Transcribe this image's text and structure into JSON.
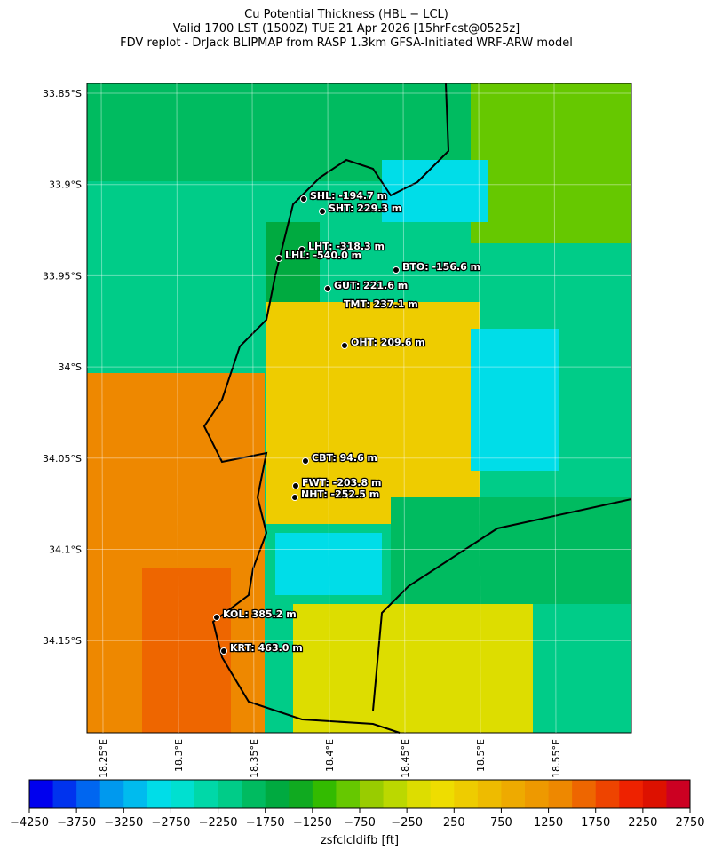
{
  "header": {
    "title_lines": [
      "Cu Potential Thickness (HBL − LCL)",
      "Valid 1700 LST (1500Z) TUE 21 Apr 2026 [15hrFcst@0525z]",
      "FDV replot - DrJack BLIPMAP from RASP 1.3km GFSA-Initiated WRF-ARW model"
    ]
  },
  "map": {
    "lat_ticks": [
      "33.85°S",
      "33.9°S",
      "33.95°S",
      "34°S",
      "34.05°S",
      "34.1°S",
      "34.15°S"
    ],
    "lon_ticks": [
      "18.25°E",
      "18.3°E",
      "18.35°E",
      "18.4°E",
      "18.45°E",
      "18.5°E",
      "18.55°E"
    ],
    "stations": [
      "SHL: -194.7 m",
      "SHT: 229.3 m",
      "LHT: -318.3 m",
      "LHL: -540.0 m",
      "BTO: -156.6 m",
      "GUT: 221.6 m",
      "TMT: 237.1 m",
      "OHT: 209.6 m",
      "CBT: 94.6 m",
      "FWT: -203.8 m",
      "NHT: -252.5 m",
      "KOL: 385.2 m",
      "KRT: 463.0 m"
    ]
  },
  "colorbar": {
    "label": "zsfclcldifb [ft]",
    "lim": [
      -4250,
      2750
    ],
    "ticks": [
      {
        "value": -4250,
        "label": "−4250"
      },
      {
        "value": -3750,
        "label": "−3750"
      },
      {
        "value": -3250,
        "label": "−3250"
      },
      {
        "value": -2750,
        "label": "−2750"
      },
      {
        "value": -2250,
        "label": "−2250"
      },
      {
        "value": -1750,
        "label": "−1750"
      },
      {
        "value": -1250,
        "label": "−1250"
      },
      {
        "value": -750,
        "label": "−750"
      },
      {
        "value": -250,
        "label": "−250"
      },
      {
        "value": 250,
        "label": "250"
      },
      {
        "value": 750,
        "label": "750"
      },
      {
        "value": 1250,
        "label": "1250"
      },
      {
        "value": 1750,
        "label": "1750"
      },
      {
        "value": 2250,
        "label": "2250"
      },
      {
        "value": 2750,
        "label": "2750"
      }
    ],
    "colors": [
      "#0000ee",
      "#0033ee",
      "#0066f0",
      "#0099ee",
      "#00bbee",
      "#00dde8",
      "#00e0d0",
      "#00d8a8",
      "#00cc88",
      "#00bb60",
      "#00aa40",
      "#10aa20",
      "#33bb00",
      "#66c800",
      "#99cc00",
      "#bbd800",
      "#dddd00",
      "#eedd00",
      "#eecc00",
      "#eebb00",
      "#eeaa00",
      "#ee9900",
      "#ee8800",
      "#ee6600",
      "#ee4400",
      "#ee2200",
      "#dd1100",
      "#cc0022"
    ]
  }
}
